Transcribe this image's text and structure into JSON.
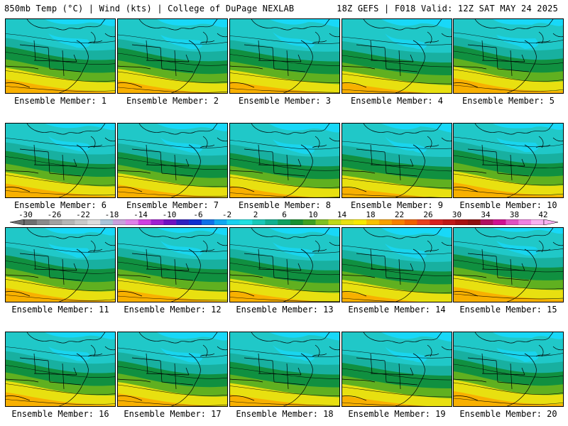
{
  "header": {
    "left": "850mb Temp (°C) | Wind (kts) | College of DuPage NEXLAB",
    "right": "18Z GEFS | F018 Valid: 12Z SAT MAY 24 2025"
  },
  "members": [
    {
      "label": "Ensemble Member: 1"
    },
    {
      "label": "Ensemble Member: 2"
    },
    {
      "label": "Ensemble Member: 3"
    },
    {
      "label": "Ensemble Member: 4"
    },
    {
      "label": "Ensemble Member: 5"
    },
    {
      "label": "Ensemble Member: 6"
    },
    {
      "label": "Ensemble Member: 7"
    },
    {
      "label": "Ensemble Member: 8"
    },
    {
      "label": "Ensemble Member: 9"
    },
    {
      "label": "Ensemble Member: 10"
    },
    {
      "label": "Ensemble Member: 11"
    },
    {
      "label": "Ensemble Member: 12"
    },
    {
      "label": "Ensemble Member: 13"
    },
    {
      "label": "Ensemble Member: 14"
    },
    {
      "label": "Ensemble Member: 15"
    },
    {
      "label": "Ensemble Member: 16"
    },
    {
      "label": "Ensemble Member: 17"
    },
    {
      "label": "Ensemble Member: 18"
    },
    {
      "label": "Ensemble Member: 19"
    },
    {
      "label": "Ensemble Member: 20"
    }
  ],
  "colorbar": {
    "labels": [
      "-30",
      "-26",
      "-22",
      "-18",
      "-14",
      "-10",
      "-6",
      "-2",
      "2",
      "6",
      "10",
      "14",
      "18",
      "22",
      "26",
      "30",
      "34",
      "38",
      "42"
    ],
    "colors": [
      "#6f6f6f",
      "#8a8a8a",
      "#a0a0a0",
      "#b5b5b5",
      "#c9c9c9",
      "#dcdcdc",
      "#a9c3d9",
      "#c8a0dc",
      "#e080e8",
      "#d040e0",
      "#a020d0",
      "#7010c0",
      "#3020c0",
      "#1030d0",
      "#1070e8",
      "#10a8f0",
      "#18d0f0",
      "#20e0e0",
      "#18c8b8",
      "#10b090",
      "#10a060",
      "#189030",
      "#40a020",
      "#80c020",
      "#c0d818",
      "#e8e010",
      "#f8e800",
      "#f8c000",
      "#f8a000",
      "#f88000",
      "#f06000",
      "#e84020",
      "#d82020",
      "#c01818",
      "#a81010",
      "#901010",
      "#b01060",
      "#d01090",
      "#e050c0",
      "#f080e0",
      "#f8b0f0"
    ]
  },
  "map_colors": {
    "cold": "#18d8f8",
    "cyan": "#20c8c8",
    "teal": "#18b0a0",
    "green": "#109040",
    "lime": "#60b020",
    "yellow": "#e8e010",
    "orange": "#f8b000"
  }
}
